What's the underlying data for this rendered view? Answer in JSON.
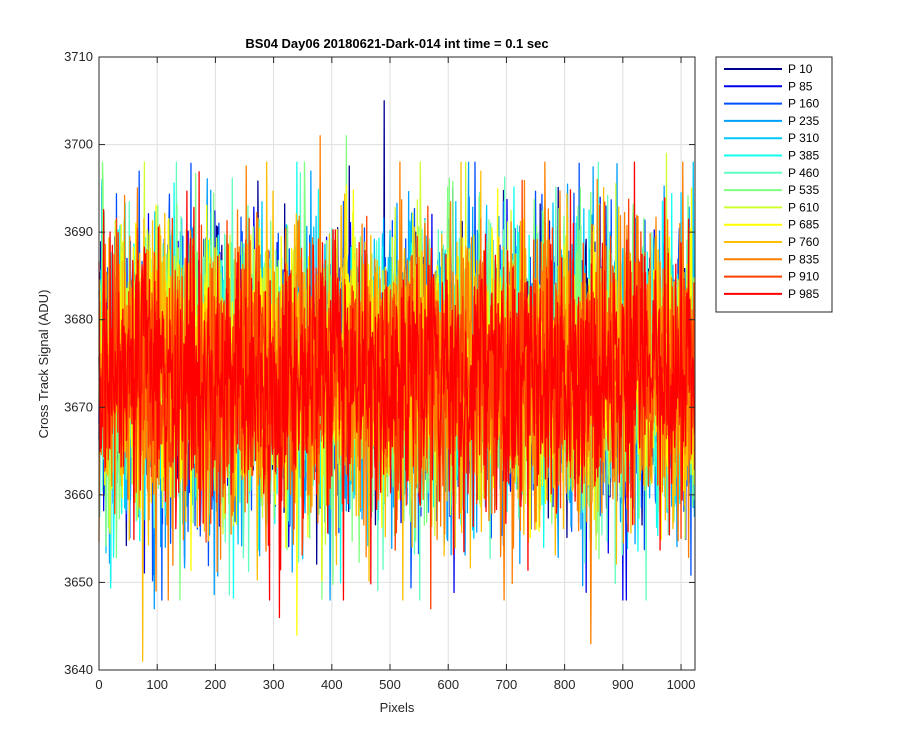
{
  "chart_data": {
    "type": "line",
    "title": "BS04 Day06 20180621-Dark-014 int time = 0.1 sec",
    "xlabel": "Pixels",
    "ylabel": "Cross Track Signal (ADU)",
    "xlim": [
      0,
      1024
    ],
    "ylim": [
      3640,
      3710
    ],
    "xticks": [
      0,
      100,
      200,
      300,
      400,
      500,
      600,
      700,
      800,
      900,
      1000
    ],
    "yticks": [
      3640,
      3650,
      3660,
      3670,
      3680,
      3690,
      3700,
      3710
    ],
    "grid": true,
    "legend_position": "outside-top-right",
    "sample_count": 1024,
    "signal_mean": 3674,
    "signal_typical_range": [
      3656,
      3692
    ],
    "series": [
      {
        "name": "P 10",
        "color": "#00008F",
        "notable_points": [
          [
            490,
            3705
          ]
        ]
      },
      {
        "name": "P 85",
        "color": "#0000EF",
        "notable_points": [
          [
            900,
            3648
          ]
        ]
      },
      {
        "name": "P 160",
        "color": "#0050FF",
        "notable_points": [
          [
            20,
            3650
          ]
        ]
      },
      {
        "name": "P 235",
        "color": "#00A0FF",
        "notable_points": [
          [
            95,
            3647
          ]
        ]
      },
      {
        "name": "P 310",
        "color": "#00C8FF",
        "notable_points": [
          [
            5,
            3696
          ]
        ]
      },
      {
        "name": "P 385",
        "color": "#10FFEF",
        "notable_points": [
          [
            340,
            3698
          ]
        ]
      },
      {
        "name": "P 460",
        "color": "#60FFBF",
        "notable_points": [
          [
            940,
            3648
          ]
        ]
      },
      {
        "name": "P 535",
        "color": "#80FF80",
        "notable_points": [
          [
            425,
            3701
          ]
        ]
      },
      {
        "name": "P 610",
        "color": "#CFFF30",
        "notable_points": [
          [
            975,
            3699
          ]
        ]
      },
      {
        "name": "P 685",
        "color": "#FFFF00",
        "notable_points": [
          [
            340,
            3644
          ]
        ]
      },
      {
        "name": "P 760",
        "color": "#FFBF00",
        "notable_points": [
          [
            75,
            3641
          ]
        ]
      },
      {
        "name": "P 835",
        "color": "#FF8000",
        "notable_points": [
          [
            845,
            3643
          ],
          [
            380,
            3701
          ]
        ]
      },
      {
        "name": "P 910",
        "color": "#FF4000",
        "notable_points": [
          [
            570,
            3647
          ]
        ]
      },
      {
        "name": "P 985",
        "color": "#FF0000",
        "notable_points": [
          [
            310,
            3646
          ],
          [
            420,
            3648
          ]
        ]
      }
    ]
  }
}
